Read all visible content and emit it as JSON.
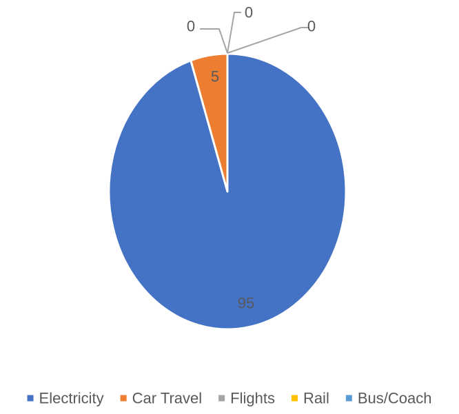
{
  "chart_data": {
    "type": "pie",
    "title": "",
    "categories": [
      "Electricity",
      "Car Travel",
      "Flights",
      "Rail",
      "Bus/Coach"
    ],
    "values": [
      95,
      5,
      0,
      0,
      0
    ],
    "colors": [
      "#4472C4",
      "#ED7D31",
      "#A5A5A5",
      "#FFC000",
      "#5B9BD5"
    ],
    "data_labels": [
      "95",
      "5",
      "0",
      "0",
      "0"
    ],
    "start_angle_deg": 0,
    "direction": "clockwise",
    "legend": {
      "position": "bottom",
      "entries": [
        "Electricity",
        "Car Travel",
        "Flights",
        "Rail",
        "Bus/Coach"
      ]
    }
  }
}
